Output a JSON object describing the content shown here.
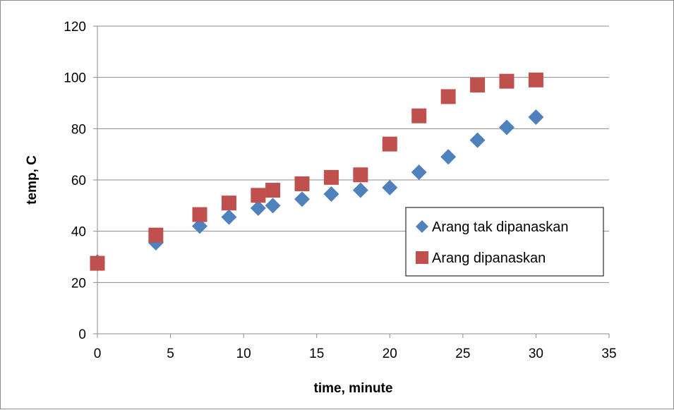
{
  "chart_data": {
    "type": "scatter",
    "title": "",
    "xlabel": "time, minute",
    "ylabel": "temp, C",
    "xlim": [
      0,
      35
    ],
    "ylim": [
      0,
      120
    ],
    "xticks": [
      0,
      5,
      10,
      15,
      20,
      25,
      30,
      35
    ],
    "yticks": [
      0,
      20,
      40,
      60,
      80,
      100,
      120
    ],
    "grid": "horizontal",
    "legend_position": "right",
    "series": [
      {
        "name": "Arang tak dipanaskan",
        "marker": "diamond",
        "color": "#4F81BD",
        "x": [
          0,
          4,
          7,
          9,
          11,
          12,
          14,
          16,
          18,
          20,
          22,
          24,
          26,
          28,
          30
        ],
        "y": [
          28,
          35.5,
          42,
          45.5,
          49,
          50,
          52.5,
          54.5,
          56,
          57,
          63,
          69,
          75.5,
          80.5,
          84.5
        ]
      },
      {
        "name": "Arang dipanaskan",
        "marker": "square",
        "color": "#C0504D",
        "x": [
          0,
          4,
          7,
          9,
          11,
          12,
          14,
          16,
          18,
          20,
          22,
          24,
          26,
          28,
          30
        ],
        "y": [
          27.5,
          38.5,
          46.5,
          51,
          54,
          56,
          58.5,
          61,
          62,
          74,
          85,
          92.5,
          97,
          98.5,
          99
        ]
      }
    ]
  }
}
